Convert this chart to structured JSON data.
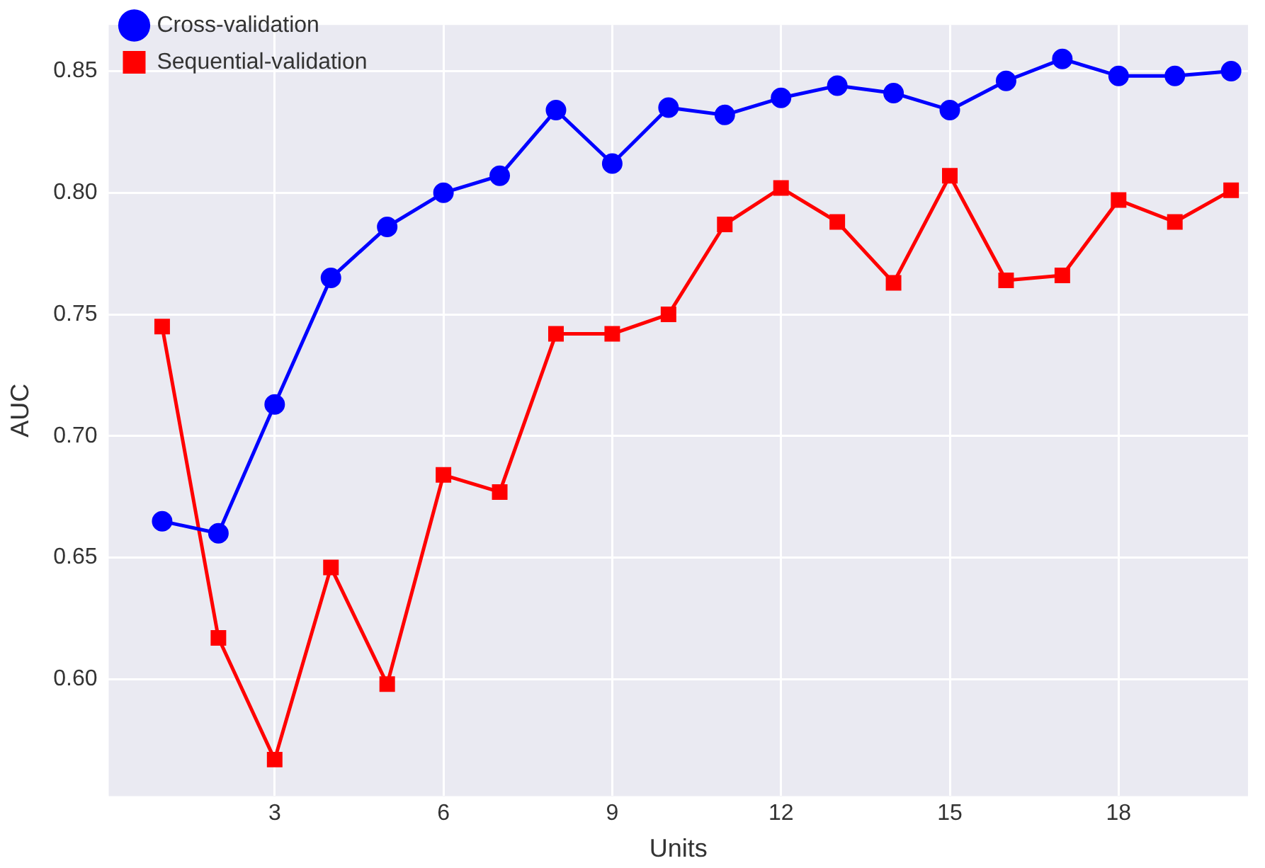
{
  "chart_data": {
    "type": "line",
    "xlabel": "Units",
    "ylabel": "AUC",
    "x": [
      1,
      2,
      3,
      4,
      5,
      6,
      7,
      8,
      9,
      10,
      11,
      12,
      13,
      14,
      15,
      16,
      17,
      18,
      19,
      20
    ],
    "series": [
      {
        "name": "Cross-validation",
        "color": "#0000ff",
        "marker": "circle",
        "values": [
          0.665,
          0.66,
          0.713,
          0.765,
          0.786,
          0.8,
          0.807,
          0.834,
          0.812,
          0.835,
          0.832,
          0.839,
          0.844,
          0.841,
          0.834,
          0.846,
          0.855,
          0.848,
          0.848,
          0.85
        ]
      },
      {
        "name": "Sequential-validation",
        "color": "#ff0000",
        "marker": "square",
        "values": [
          0.745,
          0.617,
          0.567,
          0.646,
          0.598,
          0.684,
          0.677,
          0.742,
          0.742,
          0.75,
          0.787,
          0.802,
          0.788,
          0.763,
          0.807,
          0.764,
          0.766,
          0.797,
          0.788,
          0.801
        ]
      }
    ],
    "xlim": [
      0.05,
      20.3
    ],
    "ylim": [
      0.552,
      0.869
    ],
    "xticks": [
      3,
      6,
      9,
      12,
      15,
      18
    ],
    "yticks": [
      {
        "value": 0.6,
        "label": "0.60"
      },
      {
        "value": 0.65,
        "label": "0.65"
      },
      {
        "value": 0.7,
        "label": "0.70"
      },
      {
        "value": 0.75,
        "label": "0.75"
      },
      {
        "value": 0.8,
        "label": "0.80"
      },
      {
        "value": 0.85,
        "label": "0.85"
      }
    ],
    "grid": true,
    "legend": "top left",
    "line_style": "solid"
  }
}
